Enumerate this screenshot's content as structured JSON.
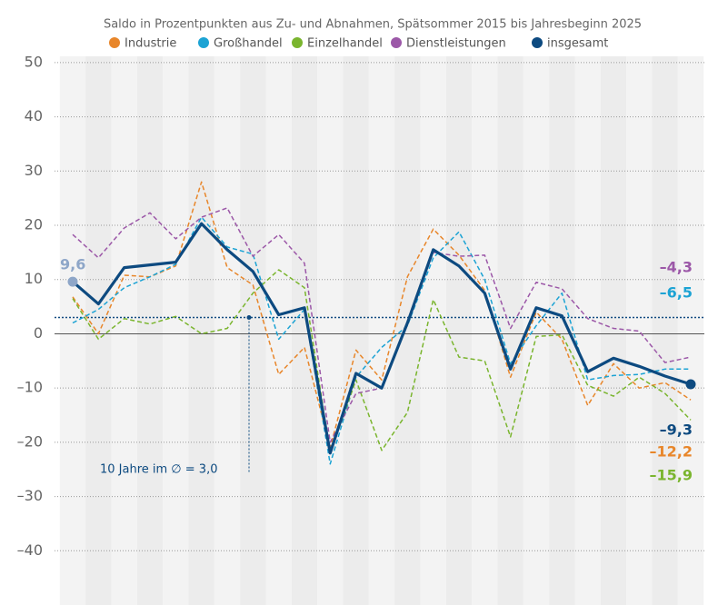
{
  "chart_data": {
    "type": "line",
    "title": "Saldo in Prozentpunkten aus Zu- und Abnahmen, Spätsommer 2015 bis Jahresbeginn 2025",
    "categories": [
      null,
      null,
      null,
      null,
      null,
      null,
      null,
      null,
      null,
      null,
      null,
      null,
      null,
      null,
      null,
      null,
      null,
      null,
      null,
      null,
      null,
      null,
      null,
      null,
      null
    ],
    "series": [
      {
        "name": "Industrie",
        "color": "#e8862a",
        "dashed": true,
        "values": [
          6.8,
          0,
          10.8,
          10.5,
          12.5,
          28,
          12.2,
          9,
          -7.5,
          -2.5,
          -21,
          -3,
          -8.5,
          10.5,
          19.3,
          14.5,
          8,
          -8,
          4,
          -1,
          -13.2,
          -5.5,
          -10,
          -9,
          -12.2
        ],
        "value_labels": [
          null,
          null,
          null,
          null,
          null,
          null,
          null,
          null,
          null,
          null,
          null,
          null,
          null,
          null,
          null,
          null,
          null,
          null,
          null,
          null,
          null,
          null,
          null,
          null,
          "–12,2"
        ]
      },
      {
        "name": "Großhandel",
        "color": "#1ca3d4",
        "dashed": true,
        "values": [
          2,
          4.5,
          8.5,
          10.5,
          12.8,
          21.5,
          16,
          14.7,
          -1,
          4.5,
          -24,
          -8,
          -2.5,
          1.5,
          14,
          18.8,
          10,
          -5.5,
          1.5,
          7.5,
          -8.5,
          -7.7,
          -7.5,
          -6.5,
          -6.5
        ],
        "value_labels": [
          null,
          null,
          null,
          null,
          null,
          null,
          null,
          null,
          null,
          null,
          null,
          null,
          null,
          null,
          null,
          null,
          null,
          null,
          null,
          null,
          null,
          null,
          null,
          null,
          "–6,5"
        ]
      },
      {
        "name": "Einzelhandel",
        "color": "#7ab52e",
        "dashed": true,
        "values": [
          6.5,
          -1,
          2.8,
          1.8,
          3.2,
          0,
          1,
          7.5,
          11.8,
          8.5,
          -22,
          -8.5,
          -21.5,
          -14.5,
          6.3,
          -4.3,
          -5,
          -19,
          -0.5,
          -0.2,
          -9.5,
          -11.5,
          -8,
          -11,
          -15.9
        ],
        "value_labels": [
          null,
          null,
          null,
          null,
          null,
          null,
          null,
          null,
          null,
          null,
          null,
          null,
          null,
          null,
          null,
          null,
          null,
          null,
          null,
          null,
          null,
          null,
          null,
          null,
          "–15,9"
        ]
      },
      {
        "name": "Dienstleistungen",
        "color": "#9c58a8",
        "dashed": true,
        "values": [
          18.3,
          14,
          19.5,
          22.3,
          17.5,
          21.5,
          23.2,
          14.3,
          18.3,
          13,
          -20,
          -11,
          -10,
          2,
          15,
          14.3,
          14.5,
          1,
          9.5,
          8.3,
          2.8,
          1,
          0.5,
          -5.3,
          -4.3
        ],
        "value_labels": [
          null,
          null,
          null,
          null,
          null,
          null,
          null,
          null,
          null,
          null,
          null,
          null,
          null,
          null,
          null,
          null,
          null,
          null,
          null,
          null,
          null,
          null,
          null,
          null,
          "–4,3"
        ]
      },
      {
        "name": "insgesamt",
        "color": "#0d4a80",
        "dashed": false,
        "values": [
          9.6,
          5.5,
          12.2,
          12.7,
          13.2,
          20.3,
          15.5,
          11.5,
          3.5,
          4.8,
          -22,
          -7.3,
          -10,
          2,
          15.5,
          12.5,
          7.5,
          -6.5,
          4.8,
          3.3,
          -7,
          -4.5,
          -6,
          -7.8,
          -9.3
        ],
        "value_labels": [
          "9,6",
          null,
          null,
          null,
          null,
          null,
          null,
          null,
          null,
          null,
          null,
          null,
          null,
          null,
          null,
          null,
          null,
          null,
          null,
          null,
          null,
          null,
          null,
          null,
          "–9,3"
        ]
      }
    ],
    "reference_line": {
      "value": 3.0,
      "label": "10 Jahre im ∅ = 3,0"
    },
    "ylim": [
      -50,
      54
    ],
    "yticks": [
      50,
      40,
      30,
      20,
      10,
      0,
      {
        "value": -10,
        "label": "–10"
      },
      {
        "value": -20,
        "label": "–20"
      },
      {
        "value": -30,
        "label": "–30"
      },
      {
        "value": -40,
        "label": "–40"
      }
    ],
    "grid": true
  }
}
